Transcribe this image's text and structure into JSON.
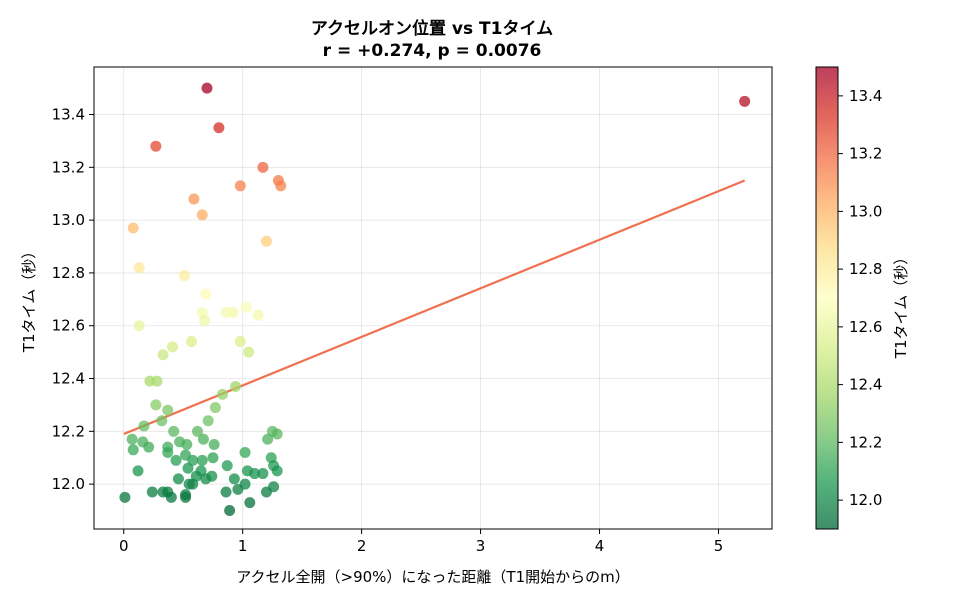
{
  "chart_data": {
    "type": "scatter",
    "title": "アクセルオン位置 vs T1タイム",
    "subtitle": "r = +0.274, p = 0.0076",
    "xlabel": "アクセル全開（>90%）になった距離（T1開始からのm）",
    "ylabel": "T1タイム（秒）",
    "colorbar_label": "T1タイム（秒）",
    "xlim": [
      -0.25,
      5.45
    ],
    "ylim": [
      11.83,
      13.58
    ],
    "x_ticks": [
      0,
      1,
      2,
      3,
      4,
      5
    ],
    "y_ticks": [
      12.0,
      12.2,
      12.4,
      12.6,
      12.8,
      13.0,
      13.2,
      13.4
    ],
    "color_range": [
      11.9,
      13.5
    ],
    "colorbar_ticks": [
      12.0,
      12.2,
      12.4,
      12.6,
      12.8,
      13.0,
      13.2,
      13.4
    ],
    "colormap": "RdYlGn_r",
    "grid": true,
    "trend_line": {
      "x": [
        0,
        5.22
      ],
      "y": [
        12.19,
        13.15
      ],
      "color": "#f07050"
    },
    "points": [
      {
        "x": 0.7,
        "y": 13.5
      },
      {
        "x": 5.22,
        "y": 13.45
      },
      {
        "x": 0.8,
        "y": 13.35
      },
      {
        "x": 0.27,
        "y": 13.28
      },
      {
        "x": 1.17,
        "y": 13.2
      },
      {
        "x": 1.3,
        "y": 13.15
      },
      {
        "x": 1.32,
        "y": 13.13
      },
      {
        "x": 0.98,
        "y": 13.13
      },
      {
        "x": 0.59,
        "y": 13.08
      },
      {
        "x": 0.66,
        "y": 13.02
      },
      {
        "x": 0.08,
        "y": 12.97
      },
      {
        "x": 1.2,
        "y": 12.92
      },
      {
        "x": 0.13,
        "y": 12.82
      },
      {
        "x": 0.51,
        "y": 12.79
      },
      {
        "x": 0.69,
        "y": 12.72
      },
      {
        "x": 1.03,
        "y": 12.67
      },
      {
        "x": 0.66,
        "y": 12.65
      },
      {
        "x": 0.86,
        "y": 12.65
      },
      {
        "x": 0.92,
        "y": 12.65
      },
      {
        "x": 1.13,
        "y": 12.64
      },
      {
        "x": 0.68,
        "y": 12.62
      },
      {
        "x": 0.13,
        "y": 12.6
      },
      {
        "x": 0.57,
        "y": 12.54
      },
      {
        "x": 0.98,
        "y": 12.54
      },
      {
        "x": 0.41,
        "y": 12.52
      },
      {
        "x": 1.05,
        "y": 12.5
      },
      {
        "x": 0.33,
        "y": 12.49
      },
      {
        "x": 0.22,
        "y": 12.39
      },
      {
        "x": 0.28,
        "y": 12.39
      },
      {
        "x": 0.94,
        "y": 12.37
      },
      {
        "x": 0.83,
        "y": 12.34
      },
      {
        "x": 0.27,
        "y": 12.3
      },
      {
        "x": 0.37,
        "y": 12.28
      },
      {
        "x": 0.77,
        "y": 12.29
      },
      {
        "x": 0.32,
        "y": 12.24
      },
      {
        "x": 0.71,
        "y": 12.24
      },
      {
        "x": 0.17,
        "y": 12.22
      },
      {
        "x": 0.42,
        "y": 12.2
      },
      {
        "x": 0.62,
        "y": 12.2
      },
      {
        "x": 1.25,
        "y": 12.2
      },
      {
        "x": 1.29,
        "y": 12.19
      },
      {
        "x": 0.07,
        "y": 12.17
      },
      {
        "x": 0.47,
        "y": 12.16
      },
      {
        "x": 0.67,
        "y": 12.17
      },
      {
        "x": 1.21,
        "y": 12.17
      },
      {
        "x": 0.16,
        "y": 12.16
      },
      {
        "x": 0.53,
        "y": 12.15
      },
      {
        "x": 0.76,
        "y": 12.15
      },
      {
        "x": 0.37,
        "y": 12.14
      },
      {
        "x": 0.21,
        "y": 12.14
      },
      {
        "x": 0.08,
        "y": 12.13
      },
      {
        "x": 0.37,
        "y": 12.12
      },
      {
        "x": 1.02,
        "y": 12.12
      },
      {
        "x": 0.52,
        "y": 12.11
      },
      {
        "x": 1.24,
        "y": 12.1
      },
      {
        "x": 0.75,
        "y": 12.1
      },
      {
        "x": 0.44,
        "y": 12.09
      },
      {
        "x": 0.58,
        "y": 12.09
      },
      {
        "x": 0.66,
        "y": 12.09
      },
      {
        "x": 0.87,
        "y": 12.07
      },
      {
        "x": 0.54,
        "y": 12.06
      },
      {
        "x": 1.26,
        "y": 12.07
      },
      {
        "x": 0.12,
        "y": 12.05
      },
      {
        "x": 1.04,
        "y": 12.05
      },
      {
        "x": 1.29,
        "y": 12.05
      },
      {
        "x": 0.65,
        "y": 12.05
      },
      {
        "x": 1.1,
        "y": 12.04
      },
      {
        "x": 1.17,
        "y": 12.04
      },
      {
        "x": 0.61,
        "y": 12.03
      },
      {
        "x": 0.74,
        "y": 12.03
      },
      {
        "x": 0.46,
        "y": 12.02
      },
      {
        "x": 0.93,
        "y": 12.02
      },
      {
        "x": 0.69,
        "y": 12.02
      },
      {
        "x": 0.55,
        "y": 12.0
      },
      {
        "x": 0.58,
        "y": 12.0
      },
      {
        "x": 1.02,
        "y": 12.0
      },
      {
        "x": 1.26,
        "y": 11.99
      },
      {
        "x": 0.96,
        "y": 11.98
      },
      {
        "x": 0.24,
        "y": 11.97
      },
      {
        "x": 0.33,
        "y": 11.97
      },
      {
        "x": 0.37,
        "y": 11.97
      },
      {
        "x": 0.86,
        "y": 11.97
      },
      {
        "x": 1.2,
        "y": 11.97
      },
      {
        "x": 0.52,
        "y": 11.96
      },
      {
        "x": 0.4,
        "y": 11.95
      },
      {
        "x": 0.52,
        "y": 11.95
      },
      {
        "x": 0.01,
        "y": 11.95
      },
      {
        "x": 1.06,
        "y": 11.93
      },
      {
        "x": 0.89,
        "y": 11.9
      }
    ]
  }
}
